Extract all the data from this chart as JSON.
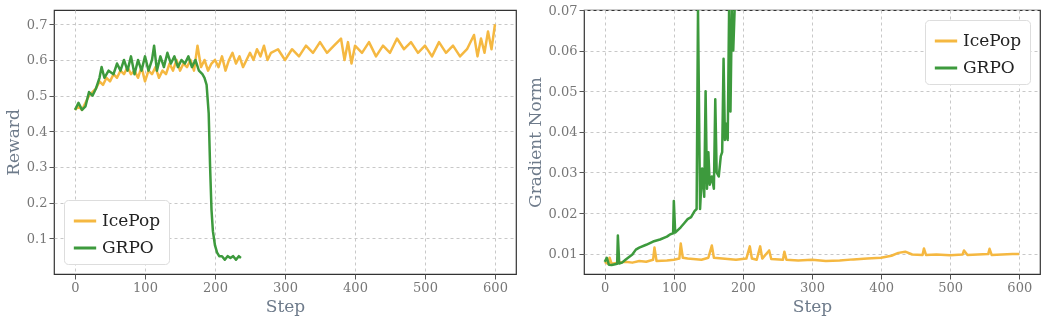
{
  "chart_data": [
    {
      "type": "line",
      "xlabel": "Step",
      "ylabel": "Reward",
      "xlim": [
        -30,
        630
      ],
      "ylim": [
        0,
        0.74
      ],
      "xticks": [
        0,
        100,
        200,
        300,
        400,
        500,
        600
      ],
      "yticks": [
        0.1,
        0.2,
        0.3,
        0.4,
        0.5,
        0.6,
        0.7
      ],
      "grid": true,
      "legend": "bottom left",
      "line_style": "solid",
      "series": [
        {
          "name": "IcePop",
          "color": "#f5b841",
          "x": [
            0,
            5,
            10,
            15,
            20,
            25,
            30,
            35,
            40,
            45,
            50,
            55,
            60,
            65,
            70,
            75,
            80,
            85,
            90,
            95,
            100,
            105,
            110,
            115,
            120,
            125,
            130,
            135,
            140,
            145,
            150,
            155,
            160,
            165,
            170,
            175,
            180,
            185,
            190,
            195,
            200,
            205,
            210,
            215,
            220,
            225,
            230,
            235,
            240,
            245,
            250,
            255,
            260,
            265,
            270,
            275,
            280,
            290,
            300,
            310,
            320,
            330,
            340,
            350,
            360,
            370,
            380,
            385,
            390,
            395,
            400,
            410,
            420,
            430,
            440,
            450,
            460,
            470,
            480,
            490,
            500,
            510,
            520,
            530,
            540,
            550,
            560,
            570,
            575,
            580,
            585,
            590,
            595,
            600
          ],
          "values": [
            0.46,
            0.47,
            0.46,
            0.48,
            0.5,
            0.51,
            0.52,
            0.54,
            0.53,
            0.55,
            0.54,
            0.56,
            0.55,
            0.57,
            0.56,
            0.58,
            0.56,
            0.57,
            0.55,
            0.58,
            0.54,
            0.57,
            0.56,
            0.58,
            0.55,
            0.57,
            0.56,
            0.59,
            0.57,
            0.6,
            0.57,
            0.59,
            0.58,
            0.6,
            0.57,
            0.64,
            0.58,
            0.6,
            0.57,
            0.59,
            0.6,
            0.58,
            0.61,
            0.57,
            0.6,
            0.62,
            0.59,
            0.61,
            0.58,
            0.6,
            0.62,
            0.6,
            0.63,
            0.61,
            0.64,
            0.6,
            0.62,
            0.63,
            0.6,
            0.63,
            0.61,
            0.64,
            0.62,
            0.65,
            0.62,
            0.64,
            0.66,
            0.6,
            0.65,
            0.59,
            0.64,
            0.62,
            0.65,
            0.61,
            0.64,
            0.62,
            0.66,
            0.63,
            0.65,
            0.62,
            0.64,
            0.61,
            0.65,
            0.62,
            0.64,
            0.61,
            0.63,
            0.67,
            0.61,
            0.66,
            0.62,
            0.68,
            0.63,
            0.7
          ]
        },
        {
          "name": "GRPO",
          "color": "#3d9a3d",
          "x": [
            0,
            5,
            10,
            15,
            20,
            25,
            30,
            35,
            38,
            42,
            48,
            55,
            60,
            65,
            70,
            75,
            80,
            85,
            90,
            95,
            100,
            105,
            110,
            113,
            117,
            122,
            127,
            132,
            137,
            142,
            147,
            152,
            157,
            162,
            167,
            172,
            177,
            182,
            185,
            188,
            191,
            193,
            195,
            197,
            200,
            203,
            206,
            210,
            214,
            218,
            222,
            226,
            230,
            234,
            237
          ],
          "values": [
            0.46,
            0.48,
            0.46,
            0.47,
            0.51,
            0.5,
            0.52,
            0.55,
            0.58,
            0.55,
            0.57,
            0.56,
            0.59,
            0.57,
            0.6,
            0.57,
            0.61,
            0.56,
            0.6,
            0.57,
            0.61,
            0.57,
            0.6,
            0.64,
            0.57,
            0.61,
            0.58,
            0.62,
            0.59,
            0.61,
            0.58,
            0.6,
            0.59,
            0.61,
            0.58,
            0.6,
            0.57,
            0.56,
            0.55,
            0.53,
            0.45,
            0.3,
            0.18,
            0.12,
            0.08,
            0.06,
            0.05,
            0.05,
            0.04,
            0.05,
            0.045,
            0.05,
            0.04,
            0.05,
            0.045
          ]
        }
      ]
    },
    {
      "type": "line",
      "xlabel": "Step",
      "ylabel": "Gradient Norm",
      "xlim": [
        -30,
        630
      ],
      "ylim": [
        0.005,
        0.07
      ],
      "xticks": [
        0,
        100,
        200,
        300,
        400,
        500,
        600
      ],
      "yticks": [
        0.01,
        0.02,
        0.03,
        0.04,
        0.05,
        0.06,
        0.07
      ],
      "grid": true,
      "legend": "top right",
      "line_style": "solid",
      "series": [
        {
          "name": "IcePop",
          "color": "#f5b841",
          "x": [
            0,
            5,
            7,
            10,
            20,
            30,
            40,
            50,
            60,
            70,
            72,
            75,
            90,
            100,
            108,
            110,
            113,
            120,
            140,
            150,
            155,
            158,
            170,
            190,
            205,
            210,
            213,
            220,
            225,
            228,
            238,
            241,
            258,
            260,
            263,
            280,
            300,
            320,
            340,
            360,
            380,
            400,
            415,
            425,
            435,
            445,
            460,
            462,
            465,
            480,
            500,
            518,
            520,
            525,
            540,
            555,
            557,
            560,
            575,
            590,
            600
          ],
          "values": [
            0.008,
            0.0075,
            0.009,
            0.0075,
            0.0078,
            0.008,
            0.0078,
            0.0082,
            0.008,
            0.0085,
            0.0115,
            0.0082,
            0.0083,
            0.0085,
            0.0088,
            0.0125,
            0.009,
            0.0088,
            0.0085,
            0.009,
            0.012,
            0.009,
            0.0088,
            0.0085,
            0.0088,
            0.0118,
            0.0088,
            0.0085,
            0.0118,
            0.0088,
            0.0108,
            0.0087,
            0.0085,
            0.0105,
            0.0085,
            0.0083,
            0.0085,
            0.0082,
            0.0083,
            0.0086,
            0.0088,
            0.009,
            0.0095,
            0.0102,
            0.0105,
            0.0098,
            0.0097,
            0.0113,
            0.0097,
            0.0098,
            0.0096,
            0.0098,
            0.0108,
            0.0097,
            0.0098,
            0.0099,
            0.0112,
            0.0097,
            0.0098,
            0.0099,
            0.0099
          ]
        },
        {
          "name": "GRPO",
          "color": "#3d9a3d",
          "x": [
            0,
            3,
            6,
            10,
            15,
            18,
            19,
            21,
            25,
            30,
            40,
            45,
            50,
            60,
            70,
            80,
            90,
            95,
            99,
            100,
            102,
            110,
            115,
            120,
            125,
            130,
            133,
            135,
            138,
            141,
            144,
            146,
            148,
            150,
            152,
            155,
            158,
            160,
            162,
            165,
            168,
            170,
            172,
            174,
            176,
            178,
            180,
            182,
            184,
            186,
            188
          ],
          "values": [
            0.008,
            0.009,
            0.0073,
            0.0072,
            0.0074,
            0.0075,
            0.0145,
            0.0076,
            0.0078,
            0.0085,
            0.0098,
            0.011,
            0.0115,
            0.0122,
            0.013,
            0.0135,
            0.0142,
            0.0148,
            0.015,
            0.023,
            0.0152,
            0.0165,
            0.0175,
            0.0185,
            0.019,
            0.0205,
            0.021,
            0.07,
            0.021,
            0.031,
            0.024,
            0.05,
            0.026,
            0.035,
            0.027,
            0.029,
            0.026,
            0.048,
            0.03,
            0.029,
            0.034,
            0.035,
            0.058,
            0.038,
            0.042,
            0.038,
            0.07,
            0.045,
            0.07,
            0.06,
            0.07
          ]
        }
      ]
    }
  ]
}
